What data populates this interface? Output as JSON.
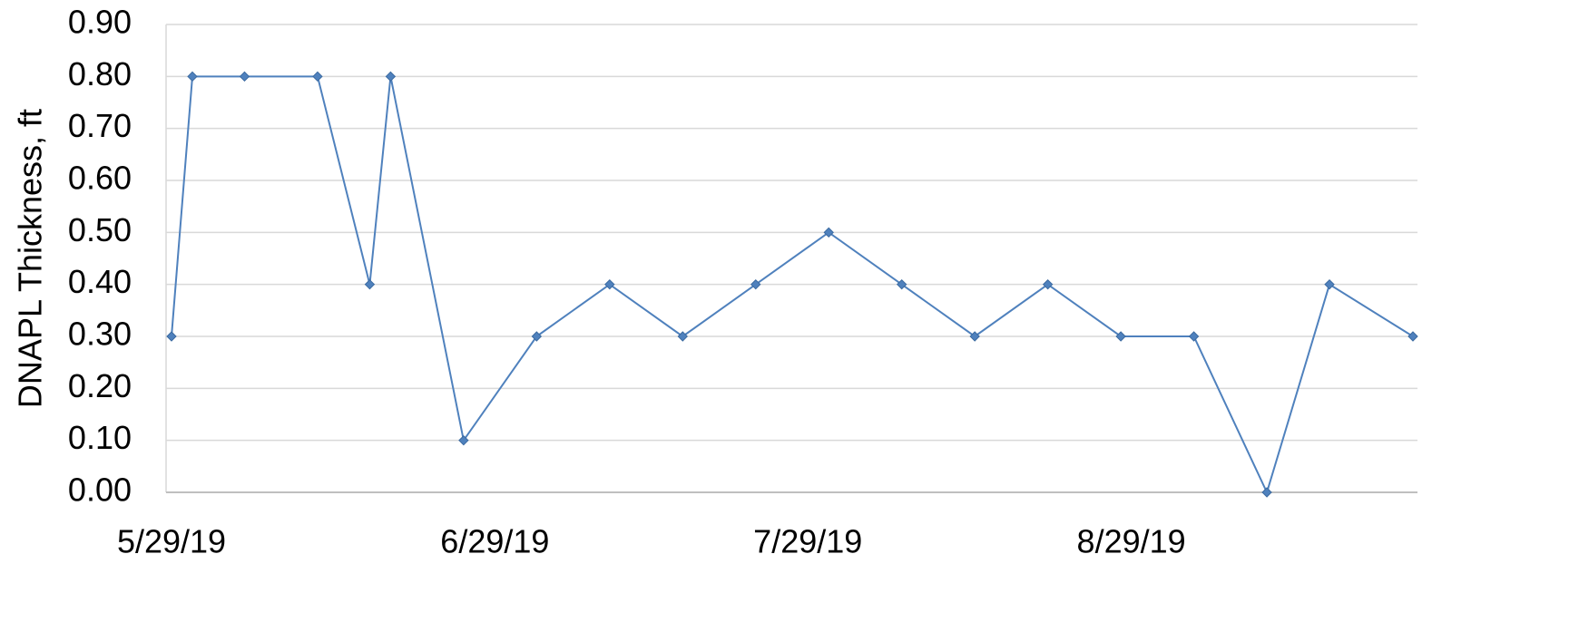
{
  "chart_data": {
    "type": "line",
    "y_label": "DNAPL Thickness, ft",
    "x": [
      "2019-05-29",
      "2019-05-31",
      "2019-06-05",
      "2019-06-12",
      "2019-06-17",
      "2019-06-19",
      "2019-06-26",
      "2019-07-03",
      "2019-07-10",
      "2019-07-17",
      "2019-07-24",
      "2019-07-31",
      "2019-08-07",
      "2019-08-14",
      "2019-08-21",
      "2019-08-28",
      "2019-09-04",
      "2019-09-11",
      "2019-09-17",
      "2019-09-25"
    ],
    "series": [
      {
        "color": "#4f81bd",
        "values": [
          0.3,
          0.8,
          0.8,
          0.8,
          0.4,
          0.8,
          0.1,
          0.3,
          0.4,
          0.3,
          0.4,
          0.5,
          0.4,
          0.3,
          0.4,
          0.3,
          0.3,
          0,
          0.4,
          0.3
        ]
      }
    ],
    "xlim": [
      "2019-05-29",
      "2019-09-25"
    ],
    "xticks": [
      {
        "value": "2019-05-29",
        "label": "5/29/19"
      },
      {
        "value": "2019-06-29",
        "label": "6/29/19"
      },
      {
        "value": "2019-07-29",
        "label": "7/29/19"
      },
      {
        "value": "2019-08-29",
        "label": "8/29/19"
      }
    ],
    "ylim": [
      0,
      0.9
    ],
    "yticks": [
      {
        "value": 0,
        "label": "0.00"
      },
      {
        "value": 0.1,
        "label": "0.10"
      },
      {
        "value": 0.2,
        "label": "0.20"
      },
      {
        "value": 0.3,
        "label": "0.30"
      },
      {
        "value": 0.4,
        "label": "0.40"
      },
      {
        "value": 0.5,
        "label": "0.50"
      },
      {
        "value": 0.6,
        "label": "0.60"
      },
      {
        "value": 0.7,
        "label": "0.70"
      },
      {
        "value": 0.8,
        "label": "0.80"
      },
      {
        "value": 0.9,
        "label": "0.90"
      }
    ],
    "grid": true
  }
}
